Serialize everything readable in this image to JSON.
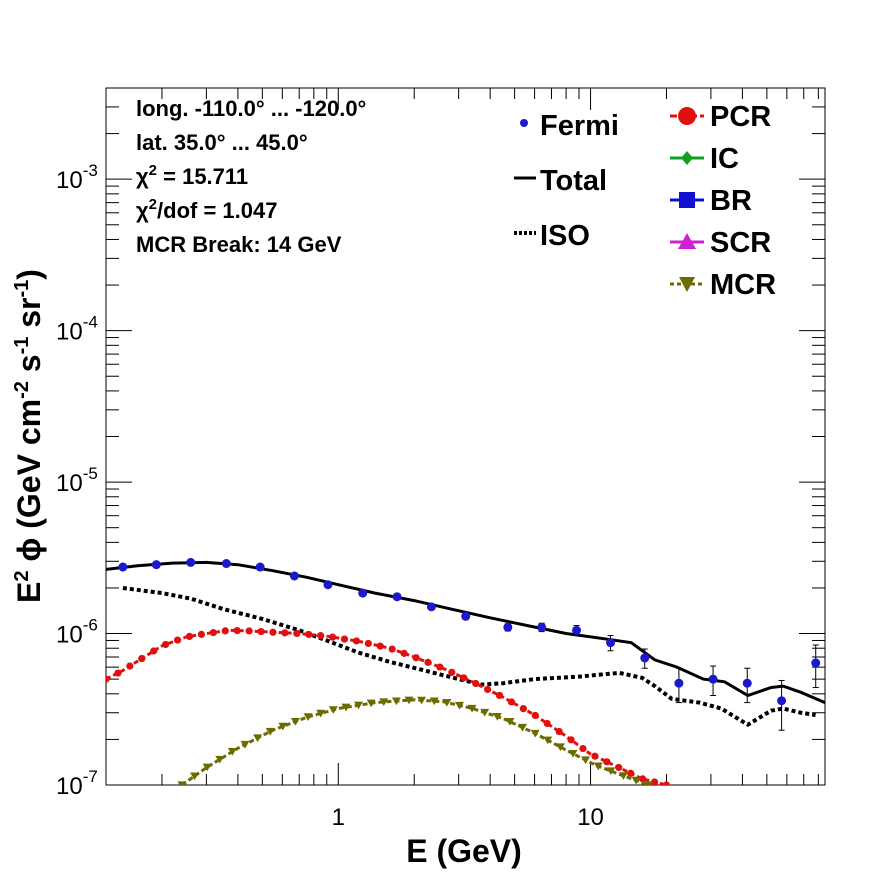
{
  "chart_data": {
    "type": "line",
    "xlabel": "E (GeV)",
    "ylabel_parts": [
      "E",
      "2",
      " ϕ (GeV cm",
      "-2",
      " s",
      "-1",
      " sr",
      "-1",
      ")"
    ],
    "x_scale": "log",
    "y_scale": "log",
    "xlim": [
      0.12,
      85
    ],
    "ylim": [
      1e-07,
      0.004
    ],
    "x_ticks": [
      {
        "value": 1,
        "label": "1"
      },
      {
        "value": 10,
        "label": "10"
      }
    ],
    "y_ticks": [
      {
        "value": 1e-07,
        "mant": "10",
        "exp": "-7"
      },
      {
        "value": 1e-06,
        "mant": "10",
        "exp": "-6"
      },
      {
        "value": 1e-05,
        "mant": "10",
        "exp": "-5"
      },
      {
        "value": 0.0001,
        "mant": "10",
        "exp": "-4"
      },
      {
        "value": 0.001,
        "mant": "10",
        "exp": "-3"
      }
    ],
    "info_lines": [
      [
        "long. -110.0° ... -120.0°"
      ],
      [
        "lat. 35.0° ... 45.0°"
      ],
      [
        "χ",
        "2",
        " = 15.711"
      ],
      [
        "χ",
        "2",
        "/dof = 1.047"
      ],
      [
        "MCR Break: 14 GeV"
      ]
    ],
    "legend_left": [
      {
        "label": "Fermi",
        "style": "point",
        "color": "#1a1acc"
      },
      {
        "label": "Total",
        "style": "solid",
        "color": "#000000"
      },
      {
        "label": "ISO",
        "style": "dotted",
        "color": "#000000"
      }
    ],
    "legend_right": [
      {
        "label": "PCR",
        "style": "circle",
        "color": "#e01010"
      },
      {
        "label": "IC",
        "style": "diamond",
        "color": "#10a020"
      },
      {
        "label": "BR",
        "style": "square",
        "color": "#1010d0"
      },
      {
        "label": "SCR",
        "style": "triangle-up",
        "color": "#d020d0"
      },
      {
        "label": "MCR",
        "style": "triangle-down",
        "color": "#6b6b00"
      }
    ],
    "fermi": {
      "name": "Fermi",
      "color": "#1a1acc",
      "points": [
        {
          "x": 0.14,
          "y": 2.75e-06,
          "err": 1e-07
        },
        {
          "x": 0.19,
          "y": 2.85e-06,
          "err": 1e-07
        },
        {
          "x": 0.26,
          "y": 2.95e-06,
          "err": 1e-07
        },
        {
          "x": 0.36,
          "y": 2.9e-06,
          "err": 1e-07
        },
        {
          "x": 0.49,
          "y": 2.75e-06,
          "err": 8e-08
        },
        {
          "x": 0.67,
          "y": 2.4e-06,
          "err": 8e-08
        },
        {
          "x": 0.91,
          "y": 2.1e-06,
          "err": 7e-08
        },
        {
          "x": 1.25,
          "y": 1.85e-06,
          "err": 7e-08
        },
        {
          "x": 1.71,
          "y": 1.75e-06,
          "err": 7e-08
        },
        {
          "x": 2.34,
          "y": 1.5e-06,
          "err": 6e-08
        },
        {
          "x": 3.2,
          "y": 1.3e-06,
          "err": 6e-08
        },
        {
          "x": 4.7,
          "y": 1.1e-06,
          "err": 6e-08
        },
        {
          "x": 6.4,
          "y": 1.1e-06,
          "err": 7e-08
        },
        {
          "x": 8.8,
          "y": 1.05e-06,
          "err": 8e-08
        },
        {
          "x": 12.0,
          "y": 8.7e-07,
          "err": 1e-07
        },
        {
          "x": 16.4,
          "y": 6.9e-07,
          "err": 1e-07
        },
        {
          "x": 22.4,
          "y": 4.7e-07,
          "err": 1.2e-07
        },
        {
          "x": 30.6,
          "y": 5e-07,
          "err": 1.1e-07
        },
        {
          "x": 41.8,
          "y": 4.7e-07,
          "err": 1.2e-07
        },
        {
          "x": 57.2,
          "y": 3.6e-07,
          "err": 1.3e-07
        },
        {
          "x": 78.1,
          "y": 6.4e-07,
          "err": 2e-07
        }
      ]
    },
    "total": {
      "name": "Total",
      "color": "#000000",
      "points": [
        [
          0.12,
          2.65e-06
        ],
        [
          0.16,
          2.8e-06
        ],
        [
          0.22,
          2.92e-06
        ],
        [
          0.3,
          2.95e-06
        ],
        [
          0.4,
          2.85e-06
        ],
        [
          0.55,
          2.6e-06
        ],
        [
          0.75,
          2.35e-06
        ],
        [
          1.0,
          2.1e-06
        ],
        [
          1.4,
          1.85e-06
        ],
        [
          2.0,
          1.65e-06
        ],
        [
          2.8,
          1.45e-06
        ],
        [
          4.0,
          1.27e-06
        ],
        [
          5.6,
          1.13e-06
        ],
        [
          8.0,
          1e-06
        ],
        [
          11.0,
          9.3e-07
        ],
        [
          14.5,
          8.7e-07
        ],
        [
          18.0,
          6.7e-07
        ],
        [
          22.0,
          6e-07
        ],
        [
          28.0,
          5e-07
        ],
        [
          34.0,
          4.8e-07
        ],
        [
          42.0,
          3.9e-07
        ],
        [
          52.0,
          4.4e-07
        ],
        [
          58.0,
          4.5e-07
        ],
        [
          68.0,
          4.1e-07
        ],
        [
          85.0,
          3.5e-07
        ]
      ]
    },
    "iso": {
      "name": "ISO",
      "color": "#000000",
      "points": [
        [
          0.14,
          2e-06
        ],
        [
          0.2,
          1.85e-06
        ],
        [
          0.26,
          1.7e-06
        ],
        [
          0.35,
          1.45e-06
        ],
        [
          0.5,
          1.25e-06
        ],
        [
          0.7,
          1.05e-06
        ],
        [
          0.9,
          9e-07
        ],
        [
          1.2,
          7.5e-07
        ],
        [
          1.6,
          6.5e-07
        ],
        [
          2.2,
          5.7e-07
        ],
        [
          3.0,
          5e-07
        ],
        [
          3.7,
          4.6e-07
        ],
        [
          4.5,
          4.7e-07
        ],
        [
          6.0,
          5e-07
        ],
        [
          9.0,
          5.2e-07
        ],
        [
          13.0,
          5.5e-07
        ],
        [
          16.0,
          5.1e-07
        ],
        [
          18.0,
          4.5e-07
        ],
        [
          21.0,
          3.7e-07
        ],
        [
          27.0,
          3.5e-07
        ],
        [
          33.0,
          3.2e-07
        ],
        [
          42.0,
          2.5e-07
        ],
        [
          52.0,
          3.1e-07
        ],
        [
          58.0,
          3.2e-07
        ],
        [
          68.0,
          3e-07
        ],
        [
          78.0,
          2.9e-07
        ]
      ]
    },
    "pcr": {
      "name": "PCR",
      "color": "#e01010",
      "points": [
        [
          0.12,
          5e-07
        ],
        [
          0.14,
          5.7e-07
        ],
        [
          0.17,
          7e-07
        ],
        [
          0.2,
          8.3e-07
        ],
        [
          0.25,
          9.5e-07
        ],
        [
          0.3,
          1e-06
        ],
        [
          0.37,
          1.05e-06
        ],
        [
          0.45,
          1.04e-06
        ],
        [
          0.55,
          1.02e-06
        ],
        [
          0.7,
          1e-06
        ],
        [
          0.9,
          9.6e-07
        ],
        [
          1.2,
          8.9e-07
        ],
        [
          1.6,
          8e-07
        ],
        [
          2.0,
          7e-07
        ],
        [
          2.6,
          5.9e-07
        ],
        [
          3.4,
          4.8e-07
        ],
        [
          4.5,
          3.8e-07
        ],
        [
          6.0,
          2.9e-07
        ],
        [
          8.0,
          2.1e-07
        ],
        [
          10.0,
          1.6e-07
        ],
        [
          13.0,
          1.3e-07
        ],
        [
          16.0,
          1.1e-07
        ],
        [
          20.0,
          1e-07
        ]
      ],
      "marker_n": 48
    },
    "mcr": {
      "name": "MCR",
      "color": "#6b6b00",
      "points": [
        [
          0.24,
          1e-07
        ],
        [
          0.3,
          1.3e-07
        ],
        [
          0.4,
          1.75e-07
        ],
        [
          0.55,
          2.3e-07
        ],
        [
          0.75,
          2.8e-07
        ],
        [
          1.0,
          3.2e-07
        ],
        [
          1.4,
          3.5e-07
        ],
        [
          2.0,
          3.65e-07
        ],
        [
          2.6,
          3.55e-07
        ],
        [
          3.4,
          3.2e-07
        ],
        [
          4.5,
          2.75e-07
        ],
        [
          6.0,
          2.2e-07
        ],
        [
          8.0,
          1.7e-07
        ],
        [
          10.5,
          1.35e-07
        ],
        [
          13.5,
          1.15e-07
        ],
        [
          17.0,
          1e-07
        ]
      ],
      "marker_n": 38
    }
  }
}
